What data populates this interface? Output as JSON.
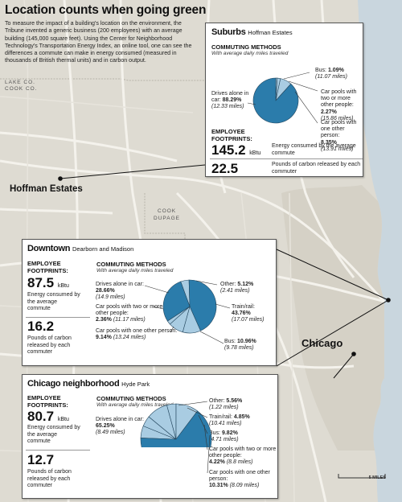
{
  "title": "Location counts when going green",
  "intro": "To measure the impact of a building's location on the environment, the Tribune invented a generic business (200 employees) with an average building (145,000 square feet). Using the Center for Neighborhood Technology's Transportation Energy Index, an online tool, one can see the differences a commute can make in energy consumed (measured in thousands of British thermal units) and in carbon output.",
  "map": {
    "county_labels": [
      "LAKE CO.",
      "COOK CO.",
      "COOK",
      "DUPAGE"
    ],
    "places": {
      "hoffman": "Hoffman Estates",
      "chicago": "Chicago"
    },
    "scale": "5 MILES",
    "colors": {
      "water": "#c9d6de",
      "land": "#dedbd2",
      "roads": "#f4f2ec",
      "border": "#b8b4ab"
    }
  },
  "common": {
    "commuting_methods": "COMMUTING METHODS",
    "commuting_sub": "With average daily miles traveled",
    "employee_footprints": "EMPLOYEE FOOTPRINTS:",
    "energy_unit": "kBtu",
    "energy_desc": "Energy consumed by the average commute",
    "carbon_desc": "Pounds of carbon released by each commuter"
  },
  "colors": {
    "dark": "#2b7cab",
    "light": "#a9cce2",
    "stroke": "#24475e"
  },
  "chart_data": [
    {
      "type": "pie",
      "title": "Suburbs",
      "subtitle": "Hoffman Estates",
      "energy": "145.2",
      "carbon": "22.5",
      "slices": [
        {
          "name": "Bus:",
          "value": 1.09,
          "pct": "1.09%",
          "miles": "(11.07 miles)"
        },
        {
          "name": "Car pools with two or more other people:",
          "value": 2.27,
          "pct": "2.27%",
          "miles": "(15.86 miles)"
        },
        {
          "name": "Car pools with one other person:",
          "value": 8.35,
          "pct": "8.35%",
          "miles": "(13.91 miles)"
        },
        {
          "name": "Drives alone in car:",
          "value": 88.29,
          "pct": "88.29%",
          "miles": "(12.33 miles)"
        }
      ]
    },
    {
      "type": "pie",
      "title": "Downtown",
      "subtitle": "Dearborn and Madison",
      "energy": "87.5",
      "carbon": "16.2",
      "slices": [
        {
          "name": "Other:",
          "value": 5.12,
          "pct": "5.12%",
          "miles": "(2.41 miles)"
        },
        {
          "name": "Train/rail:",
          "value": 43.76,
          "pct": "43.76%",
          "miles": "(17.07 miles)"
        },
        {
          "name": "Bus:",
          "value": 10.96,
          "pct": "10.96%",
          "miles": "(9.78 miles)"
        },
        {
          "name": "Car pools with one other person:",
          "value": 9.14,
          "pct": "9.14%",
          "miles": "(13.24 miles)"
        },
        {
          "name": "Car pools with two or more other people:",
          "value": 2.36,
          "pct": "2.36%",
          "miles": "(11.17 miles)"
        },
        {
          "name": "Drives alone in car:",
          "value": 28.66,
          "pct": "28.66%",
          "miles": "(14.9 miles)"
        }
      ]
    },
    {
      "type": "pie",
      "title": "Chicago neighborhood",
      "subtitle": "Hyde Park",
      "energy": "80.7",
      "carbon": "12.7",
      "slices": [
        {
          "name": "Other:",
          "value": 5.56,
          "pct": "5.56%",
          "miles": "(1.22 miles)"
        },
        {
          "name": "Train/rail:",
          "value": 4.85,
          "pct": "4.85%",
          "miles": "(10.41 miles)"
        },
        {
          "name": "Bus:",
          "value": 9.82,
          "pct": "9.82%",
          "miles": "(4.71 miles)"
        },
        {
          "name": "Car pools with two or more other people:",
          "value": 4.22,
          "pct": "4.22%",
          "miles": "(8.8 miles)"
        },
        {
          "name": "Car pools with one other person:",
          "value": 10.31,
          "pct": "10.31%",
          "miles": "(8.09 miles)"
        },
        {
          "name": "Drives alone in car:",
          "value": 65.25,
          "pct": "65.25%",
          "miles": "(8.49 miles)"
        }
      ]
    }
  ]
}
